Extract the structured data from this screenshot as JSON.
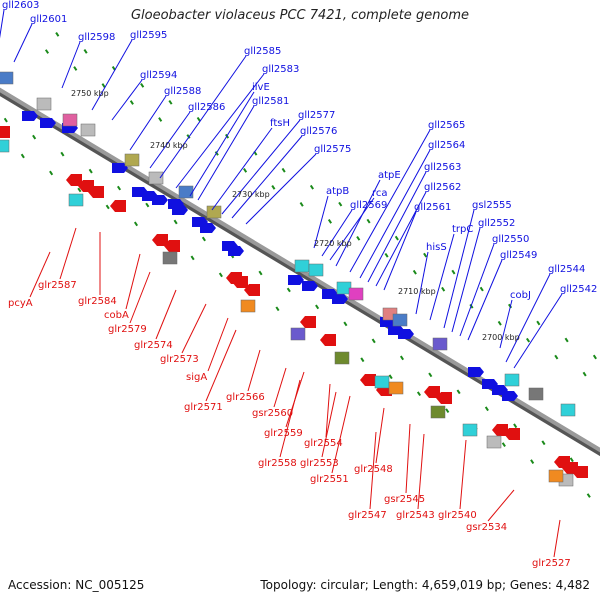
{
  "title": "Gloeobacter violaceus PCC 7421, complete genome",
  "accession": "Accession: NC_005125",
  "topology": "Topology: circular; Length: 4,659,019 bp; Genes: 4,482",
  "colors": {
    "forward": "#1010e0",
    "reverse": "#e01010",
    "axis": "#888888",
    "tick": "#1a8a1a"
  },
  "scale_ticks": [
    {
      "label": "2750 kbp",
      "pos": 2750
    },
    {
      "label": "2740 kbp",
      "pos": 2740
    },
    {
      "label": "2730 kbp",
      "pos": 2730
    },
    {
      "label": "2720 kbp",
      "pos": 2720
    },
    {
      "label": "2710 kbp",
      "pos": 2710
    },
    {
      "label": "2700 kbp",
      "pos": 2700
    }
  ],
  "forward_genes": [
    {
      "name": "gll2603"
    },
    {
      "name": "gll2601"
    },
    {
      "name": "gll2598"
    },
    {
      "name": "gll2595"
    },
    {
      "name": "gll2594"
    },
    {
      "name": "gll2588"
    },
    {
      "name": "gll2586"
    },
    {
      "name": "gll2585"
    },
    {
      "name": "gll2583"
    },
    {
      "name": "ilvE"
    },
    {
      "name": "gll2581"
    },
    {
      "name": "ftsH"
    },
    {
      "name": "gll2577"
    },
    {
      "name": "gll2576"
    },
    {
      "name": "gll2575"
    },
    {
      "name": "atpB"
    },
    {
      "name": "gll2569"
    },
    {
      "name": "rca"
    },
    {
      "name": "atpE"
    },
    {
      "name": "gll2565"
    },
    {
      "name": "gll2564"
    },
    {
      "name": "gll2563"
    },
    {
      "name": "gll2562"
    },
    {
      "name": "gll2561"
    },
    {
      "name": "hisS"
    },
    {
      "name": "trpC"
    },
    {
      "name": "gsl2555"
    },
    {
      "name": "gll2552"
    },
    {
      "name": "gll2550"
    },
    {
      "name": "gll2549"
    },
    {
      "name": "cobJ"
    },
    {
      "name": "gll2544"
    },
    {
      "name": "gll2542"
    }
  ],
  "reverse_genes": [
    {
      "name": "pcyA"
    },
    {
      "name": "glr2587"
    },
    {
      "name": "glr2584"
    },
    {
      "name": "cobA"
    },
    {
      "name": "glr2579"
    },
    {
      "name": "glr2574"
    },
    {
      "name": "glr2573"
    },
    {
      "name": "sigA"
    },
    {
      "name": "glr2571"
    },
    {
      "name": "glr2566"
    },
    {
      "name": "gsr2560"
    },
    {
      "name": "glr2559"
    },
    {
      "name": "glr2558"
    },
    {
      "name": "glr2554"
    },
    {
      "name": "glr2553"
    },
    {
      "name": "glr2551"
    },
    {
      "name": "glr2548"
    },
    {
      "name": "gsr2545"
    },
    {
      "name": "glr2547"
    },
    {
      "name": "glr2543"
    },
    {
      "name": "glr2540"
    },
    {
      "name": "gsr2534"
    },
    {
      "name": "glr2527"
    }
  ]
}
